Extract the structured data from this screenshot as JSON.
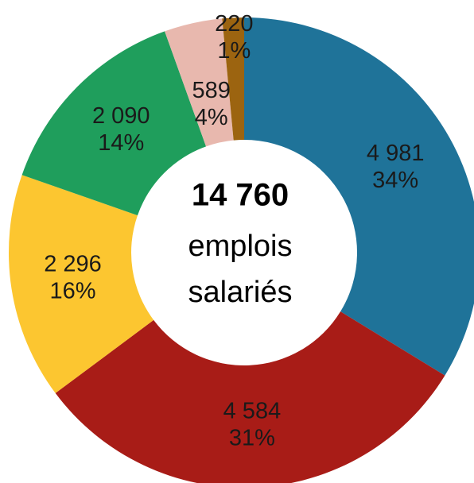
{
  "chart_data": {
    "type": "donut",
    "values": [
      4981,
      4584,
      2296,
      2090,
      589,
      220
    ],
    "value_labels": [
      "4 981",
      "4 584",
      "2 296",
      "2 090",
      "589",
      "220"
    ],
    "percents": [
      34,
      31,
      16,
      14,
      4,
      1
    ],
    "percent_labels": [
      "34%",
      "31%",
      "16%",
      "14%",
      "4%",
      "1%"
    ],
    "colors": [
      "#1f7399",
      "#a81c17",
      "#fcc630",
      "#1f9e5c",
      "#e8b8ae",
      "#9c6410"
    ],
    "total": 14760,
    "total_label": "14 760",
    "center_lines": [
      "emplois",
      "salariés"
    ]
  }
}
